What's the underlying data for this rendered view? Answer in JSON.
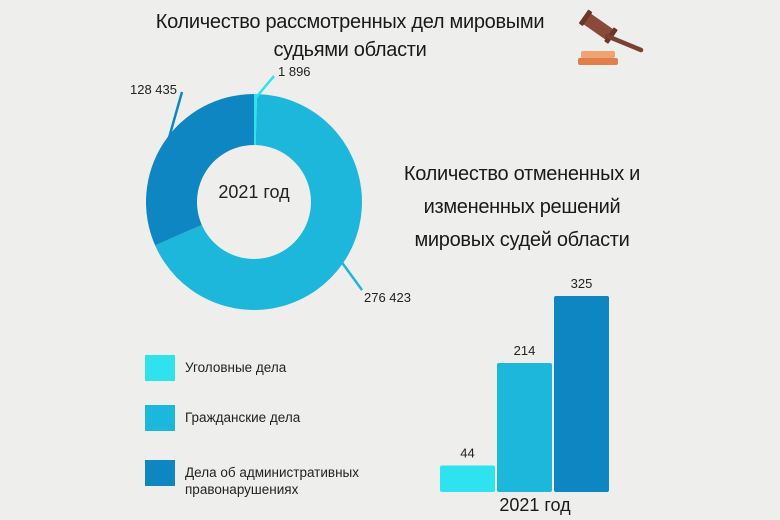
{
  "titles": {
    "donut_title": "Количество рассмотренных дел мировыми судьями области",
    "bar_title": "Количество отмененных и измененных решений мировых судей области"
  },
  "icons": {
    "gavel": "gavel-icon"
  },
  "colors": {
    "criminal": "#2ee3ee",
    "civil": "#1cb7da",
    "administrative": "#0e86c1"
  },
  "chart_data": [
    {
      "type": "pie",
      "title": "Количество рассмотренных дел мировыми судьями области",
      "center_label": "2021 год",
      "slices": [
        {
          "name": "Уголовные дела",
          "value": 1896,
          "label": "1 896"
        },
        {
          "name": "Гражданские дела",
          "value": 276423,
          "label": "276 423"
        },
        {
          "name": "Дела об административных правонарушениях",
          "value": 128435,
          "label": "128 435"
        }
      ],
      "legend": [
        "Уголовные дела",
        "Гражданские дела",
        "Дела об административных правонарушениях"
      ],
      "legend_position": "bottom-left"
    },
    {
      "type": "bar",
      "title": "Количество отмененных и измененных решений мировых судей области",
      "xlabel": "2021 год",
      "categories": [
        "Уголовные дела",
        "Гражданские дела",
        "Дела об административных правонарушениях"
      ],
      "values": [
        44,
        214,
        325
      ],
      "value_labels": [
        "44",
        "214",
        "325"
      ]
    }
  ]
}
